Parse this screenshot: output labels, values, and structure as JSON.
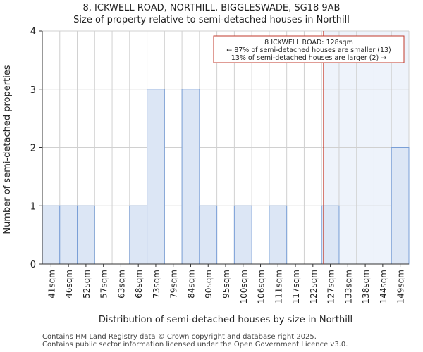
{
  "header": {
    "title_line1": "8, ICKWELL ROAD, NORTHILL, BIGGLESWADE, SG18 9AB",
    "title_line2": "Size of property relative to semi-detached houses in Northill"
  },
  "footer": {
    "line1": "Contains HM Land Registry data © Crown copyright and database right 2025.",
    "line2": "Contains public sector information licensed under the Open Government Licence v3.0."
  },
  "chart_data": {
    "type": "bar",
    "categories": [
      "41sqm",
      "46sqm",
      "52sqm",
      "57sqm",
      "63sqm",
      "68sqm",
      "73sqm",
      "79sqm",
      "84sqm",
      "90sqm",
      "95sqm",
      "100sqm",
      "106sqm",
      "111sqm",
      "117sqm",
      "122sqm",
      "127sqm",
      "133sqm",
      "138sqm",
      "144sqm",
      "149sqm"
    ],
    "values": [
      1,
      1,
      1,
      0,
      0,
      1,
      3,
      0,
      3,
      1,
      0,
      1,
      0,
      1,
      0,
      0,
      1,
      0,
      0,
      0,
      2
    ],
    "xlabel": "Distribution of semi-detached houses by size in Northill",
    "ylabel": "Number of semi-detached properties",
    "ylim": [
      0,
      4
    ],
    "yticks": [
      0,
      1,
      2,
      3,
      4
    ],
    "grid": true,
    "bar_color": "#dce6f5",
    "bar_edge": "#7a9fd6",
    "marker": {
      "value_sqm": 128,
      "color": "#c0392b",
      "annotation_title": "8 ICKWELL ROAD: 128sqm",
      "annotation_line2": "← 87% of semi-detached houses are smaller (13)",
      "annotation_line3": "13% of semi-detached houses are larger (2) →"
    },
    "highlight_color": "#eef3fb"
  }
}
